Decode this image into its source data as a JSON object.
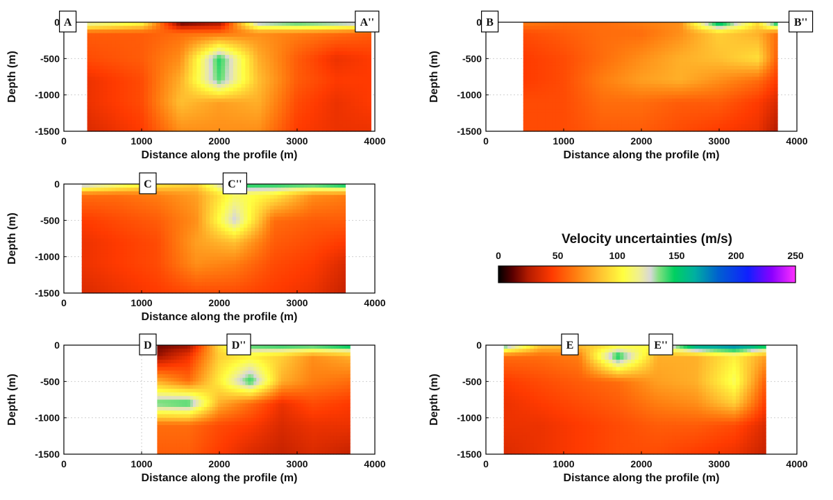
{
  "chart_data": [
    {
      "type": "heatmap",
      "xlabel": "Distance along the profile (m)",
      "ylabel": "Depth (m)",
      "xlim": [
        0,
        4000
      ],
      "ylim": [
        -1500,
        0
      ],
      "xticks": [
        0,
        1000,
        2000,
        3000,
        4000
      ],
      "yticks": [
        0,
        -500,
        -1000,
        -1500
      ],
      "grid": true,
      "data_extent_x": [
        300,
        3950
      ],
      "profile_labels": [
        {
          "text": "A",
          "x": 50
        },
        {
          "text": "A''",
          "x": 3900
        }
      ],
      "uncertainty_grid": {
        "x": [
          300,
          1000,
          1500,
          2000,
          2500,
          3000,
          3500,
          3950
        ],
        "depth": [
          0,
          -150,
          -500,
          -800,
          -1100,
          -1500
        ],
        "values": [
          [
            130,
            110,
            10,
            20,
            140,
            150,
            145,
            140
          ],
          [
            55,
            55,
            60,
            60,
            70,
            65,
            60,
            55
          ],
          [
            50,
            55,
            70,
            145,
            80,
            55,
            40,
            45
          ],
          [
            40,
            50,
            80,
            140,
            85,
            55,
            45,
            45
          ],
          [
            40,
            50,
            85,
            75,
            80,
            50,
            40,
            45
          ],
          [
            35,
            45,
            70,
            70,
            70,
            45,
            40,
            40
          ]
        ]
      }
    },
    {
      "type": "heatmap",
      "xlabel": "Distance along the profile (m)",
      "ylabel": "Depth (m)",
      "xlim": [
        0,
        4000
      ],
      "ylim": [
        -1500,
        0
      ],
      "xticks": [
        0,
        1000,
        2000,
        3000,
        4000
      ],
      "yticks": [
        0,
        -500,
        -1000,
        -1500
      ],
      "grid": true,
      "data_extent_x": [
        480,
        3750
      ],
      "profile_labels": [
        {
          "text": "B",
          "x": 50
        },
        {
          "text": "B''",
          "x": 4050
        }
      ],
      "uncertainty_grid": {
        "x": [
          480,
          1000,
          1500,
          2000,
          2500,
          3000,
          3500,
          3750
        ],
        "depth": [
          0,
          -150,
          -500,
          -800,
          -1100,
          -1500
        ],
        "values": [
          [
            65,
            60,
            60,
            65,
            70,
            165,
            95,
            165
          ],
          [
            50,
            55,
            60,
            60,
            70,
            90,
            80,
            60
          ],
          [
            45,
            50,
            60,
            70,
            80,
            85,
            95,
            55
          ],
          [
            45,
            50,
            65,
            75,
            80,
            70,
            60,
            45
          ],
          [
            50,
            50,
            60,
            60,
            55,
            55,
            45,
            35
          ],
          [
            50,
            50,
            55,
            55,
            50,
            45,
            40,
            25
          ]
        ]
      }
    },
    {
      "type": "heatmap",
      "xlabel": "Distance along the profile (m)",
      "ylabel": "Depth (m)",
      "xlim": [
        0,
        4000
      ],
      "ylim": [
        -1500,
        0
      ],
      "xticks": [
        0,
        1000,
        2000,
        3000,
        4000
      ],
      "yticks": [
        0,
        -500,
        -1000,
        -1500
      ],
      "grid": true,
      "data_extent_x": [
        230,
        3620
      ],
      "profile_labels": [
        {
          "text": "C",
          "x": 1080
        },
        {
          "text": "C''",
          "x": 2200
        }
      ],
      "uncertainty_grid": {
        "x": [
          230,
          700,
          1200,
          1700,
          2200,
          2700,
          3200,
          3620
        ],
        "depth": [
          0,
          -150,
          -500,
          -800,
          -1100,
          -1500
        ],
        "values": [
          [
            140,
            120,
            100,
            90,
            150,
            150,
            150,
            160
          ],
          [
            60,
            60,
            65,
            75,
            110,
            100,
            70,
            65
          ],
          [
            45,
            50,
            55,
            70,
            130,
            60,
            55,
            55
          ],
          [
            40,
            45,
            50,
            75,
            85,
            55,
            50,
            45
          ],
          [
            40,
            45,
            50,
            70,
            65,
            50,
            45,
            35
          ],
          [
            35,
            40,
            45,
            50,
            50,
            45,
            40,
            30
          ]
        ]
      }
    },
    {
      "type": "heatmap",
      "xlabel": "Distance along the profile (m)",
      "ylabel": "Depth (m)",
      "xlim": [
        0,
        4000
      ],
      "ylim": [
        -1500,
        0
      ],
      "xticks": [
        0,
        1000,
        2000,
        3000,
        4000
      ],
      "yticks": [
        0,
        -500,
        -1000,
        -1500
      ],
      "grid": true,
      "data_extent_x": [
        1200,
        3680
      ],
      "profile_labels": [
        {
          "text": "D",
          "x": 1080
        },
        {
          "text": "D''",
          "x": 2250
        }
      ],
      "uncertainty_grid": {
        "x": [
          1200,
          1600,
          2000,
          2400,
          2800,
          3200,
          3680
        ],
        "depth": [
          0,
          -150,
          -500,
          -800,
          -1100,
          -1500
        ],
        "values": [
          [
            15,
            20,
            95,
            145,
            150,
            150,
            160
          ],
          [
            20,
            40,
            90,
            100,
            90,
            70,
            80
          ],
          [
            80,
            60,
            100,
            145,
            80,
            65,
            60
          ],
          [
            140,
            145,
            80,
            60,
            40,
            50,
            45
          ],
          [
            60,
            60,
            50,
            45,
            35,
            40,
            40
          ],
          [
            55,
            55,
            45,
            35,
            30,
            35,
            30
          ]
        ]
      }
    },
    {
      "type": "heatmap",
      "xlabel": "Distance along the profile (m)",
      "ylabel": "Depth (m)",
      "xlim": [
        0,
        4000
      ],
      "ylim": [
        -1500,
        0
      ],
      "xticks": [
        0,
        1000,
        2000,
        3000,
        4000
      ],
      "yticks": [
        0,
        -500,
        -1000,
        -1500
      ],
      "grid": true,
      "data_extent_x": [
        230,
        3600
      ],
      "profile_labels": [
        {
          "text": "E",
          "x": 1080
        },
        {
          "text": "E''",
          "x": 2250
        }
      ],
      "uncertainty_grid": {
        "x": [
          230,
          700,
          1200,
          1700,
          2200,
          2700,
          3200,
          3600
        ],
        "depth": [
          0,
          -150,
          -500,
          -800,
          -1100,
          -1500
        ],
        "values": [
          [
            150,
            90,
            85,
            100,
            110,
            175,
            185,
            160
          ],
          [
            60,
            60,
            65,
            150,
            80,
            80,
            100,
            75
          ],
          [
            45,
            50,
            55,
            60,
            75,
            80,
            110,
            55
          ],
          [
            40,
            45,
            50,
            55,
            65,
            70,
            90,
            45
          ],
          [
            40,
            40,
            45,
            50,
            55,
            55,
            50,
            35
          ],
          [
            35,
            40,
            45,
            50,
            50,
            45,
            40,
            30
          ]
        ]
      }
    }
  ],
  "colorbar": {
    "title": "Velocity uncertainties (m/s)",
    "min": 0,
    "max": 250,
    "ticks": [
      0,
      50,
      100,
      150,
      200,
      250
    ],
    "colormap": [
      {
        "v": 0,
        "color": "#000000"
      },
      {
        "v": 12,
        "color": "#5a0000"
      },
      {
        "v": 25,
        "color": "#b31b00"
      },
      {
        "v": 45,
        "color": "#ff3a00"
      },
      {
        "v": 65,
        "color": "#ff7e10"
      },
      {
        "v": 85,
        "color": "#ffc030"
      },
      {
        "v": 105,
        "color": "#ffff40"
      },
      {
        "v": 118,
        "color": "#f0f090"
      },
      {
        "v": 128,
        "color": "#d8d8d8"
      },
      {
        "v": 135,
        "color": "#80e080"
      },
      {
        "v": 148,
        "color": "#00d060"
      },
      {
        "v": 165,
        "color": "#00b0a0"
      },
      {
        "v": 185,
        "color": "#0060d0"
      },
      {
        "v": 210,
        "color": "#1020ff"
      },
      {
        "v": 230,
        "color": "#8a00ff"
      },
      {
        "v": 250,
        "color": "#ff30ff"
      }
    ]
  }
}
